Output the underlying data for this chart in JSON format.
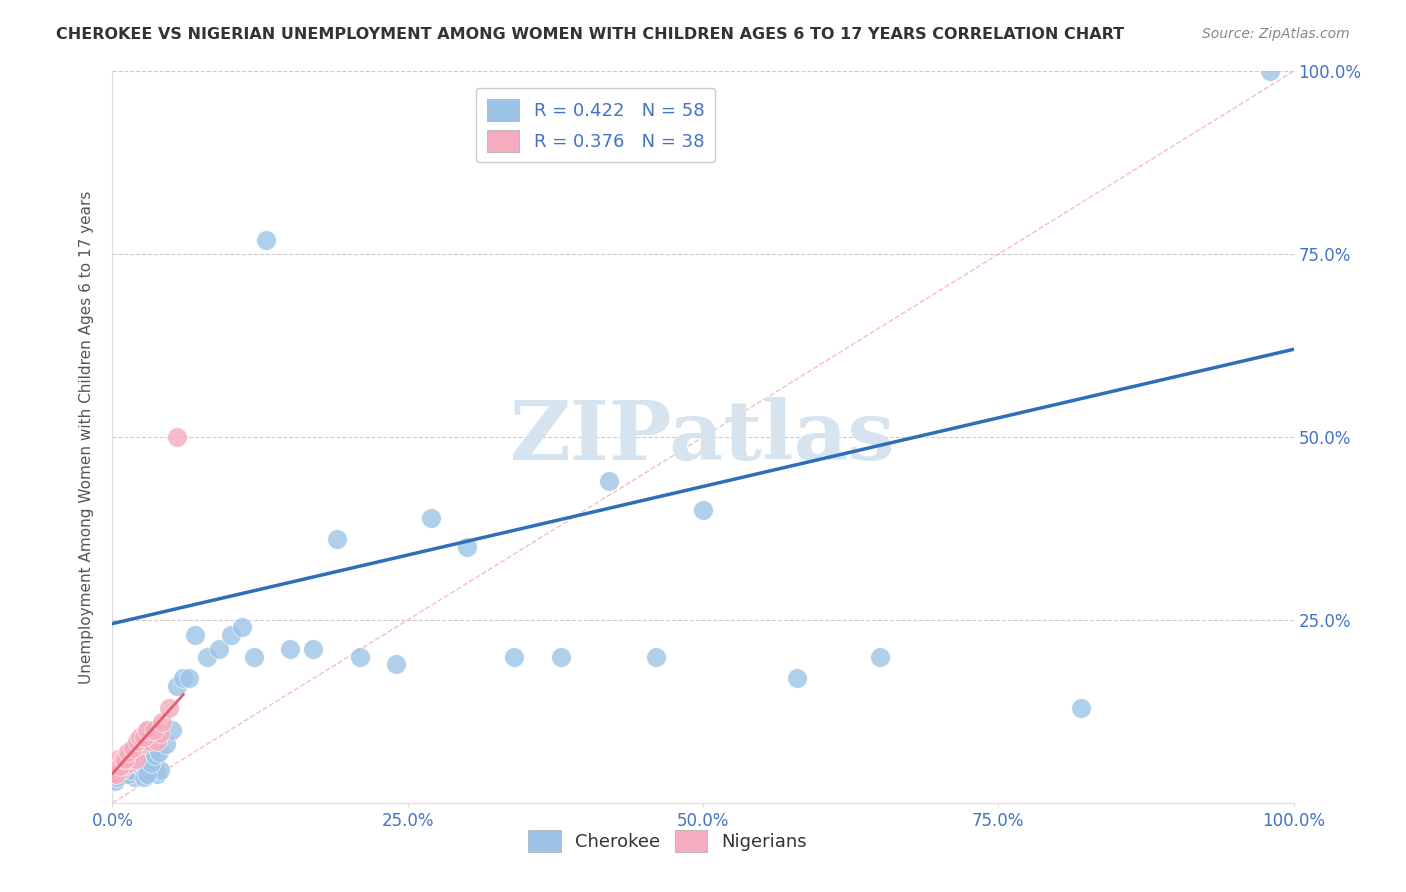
{
  "title": "CHEROKEE VS NIGERIAN UNEMPLOYMENT AMONG WOMEN WITH CHILDREN AGES 6 TO 17 YEARS CORRELATION CHART",
  "source": "Source: ZipAtlas.com",
  "ylabel": "Unemployment Among Women with Children Ages 6 to 17 years",
  "xlim": [
    0.0,
    1.0
  ],
  "ylim": [
    0.0,
    1.0
  ],
  "xtick_vals": [
    0.0,
    0.25,
    0.5,
    0.75,
    1.0
  ],
  "xtick_labels": [
    "0.0%",
    "25.0%",
    "50.0%",
    "75.0%",
    "100.0%"
  ],
  "ytick_vals": [
    0.25,
    0.5,
    0.75,
    1.0
  ],
  "ytick_labels": [
    "25.0%",
    "50.0%",
    "75.0%",
    "100.0%"
  ],
  "cherokee_R": 0.422,
  "cherokee_N": 58,
  "nigerian_R": 0.376,
  "nigerian_N": 38,
  "cherokee_color": "#9DC3E6",
  "nigerian_color": "#F4ACBE",
  "regression_cherokee_color": "#2F6EBA",
  "regression_nigerian_color": "#E06070",
  "diag_color": "#F4ACBE",
  "text_color": "#4472C4",
  "watermark": "ZIPatlas",
  "watermark_color": "#D6E4F0",
  "grid_color": "#CCCCCC",
  "cherokee_x": [
    0.005,
    0.008,
    0.01,
    0.012,
    0.015,
    0.018,
    0.02,
    0.022,
    0.025,
    0.028,
    0.03,
    0.032,
    0.035,
    0.038,
    0.04,
    0.002,
    0.004,
    0.006,
    0.009,
    0.011,
    0.013,
    0.016,
    0.019,
    0.021,
    0.024,
    0.027,
    0.029,
    0.033,
    0.036,
    0.039,
    0.045,
    0.05,
    0.055,
    0.06,
    0.065,
    0.07,
    0.08,
    0.09,
    0.1,
    0.11,
    0.12,
    0.13,
    0.15,
    0.17,
    0.19,
    0.21,
    0.24,
    0.27,
    0.3,
    0.34,
    0.38,
    0.42,
    0.46,
    0.5,
    0.58,
    0.65,
    0.82,
    0.98
  ],
  "cherokee_y": [
    0.05,
    0.04,
    0.06,
    0.045,
    0.055,
    0.035,
    0.05,
    0.06,
    0.045,
    0.04,
    0.055,
    0.06,
    0.05,
    0.04,
    0.045,
    0.03,
    0.035,
    0.05,
    0.06,
    0.055,
    0.04,
    0.045,
    0.055,
    0.06,
    0.05,
    0.035,
    0.04,
    0.055,
    0.065,
    0.07,
    0.08,
    0.1,
    0.16,
    0.17,
    0.17,
    0.23,
    0.2,
    0.21,
    0.23,
    0.24,
    0.2,
    0.77,
    0.21,
    0.21,
    0.36,
    0.2,
    0.19,
    0.39,
    0.35,
    0.2,
    0.2,
    0.44,
    0.2,
    0.4,
    0.17,
    0.2,
    0.13,
    1.0
  ],
  "nigerian_x": [
    0.002,
    0.004,
    0.005,
    0.007,
    0.008,
    0.01,
    0.012,
    0.014,
    0.015,
    0.016,
    0.018,
    0.019,
    0.02,
    0.022,
    0.024,
    0.025,
    0.026,
    0.028,
    0.03,
    0.032,
    0.034,
    0.036,
    0.038,
    0.04,
    0.003,
    0.006,
    0.009,
    0.011,
    0.013,
    0.017,
    0.021,
    0.023,
    0.027,
    0.029,
    0.035,
    0.042,
    0.048,
    0.055
  ],
  "nigerian_y": [
    0.04,
    0.05,
    0.06,
    0.045,
    0.055,
    0.05,
    0.06,
    0.055,
    0.07,
    0.06,
    0.065,
    0.07,
    0.06,
    0.08,
    0.085,
    0.08,
    0.09,
    0.095,
    0.1,
    0.085,
    0.09,
    0.095,
    0.085,
    0.095,
    0.04,
    0.05,
    0.06,
    0.06,
    0.07,
    0.075,
    0.085,
    0.09,
    0.09,
    0.1,
    0.1,
    0.11,
    0.13,
    0.5
  ]
}
